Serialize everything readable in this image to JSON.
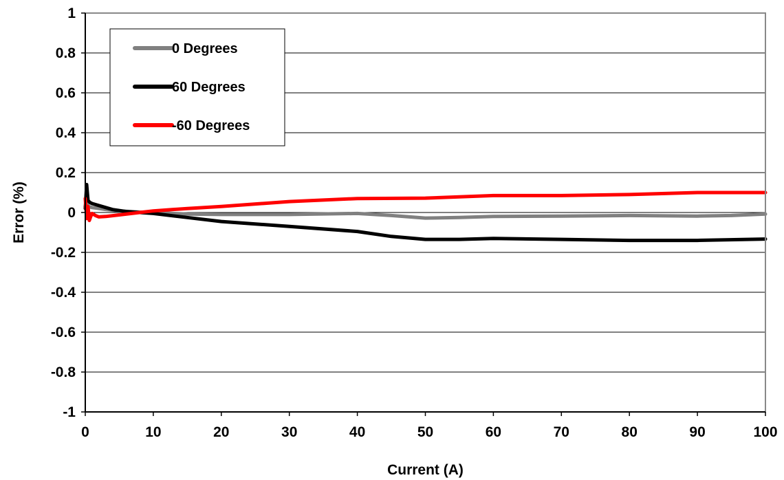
{
  "chart_data": {
    "type": "line",
    "title": "",
    "xlabel": "Current (A)",
    "ylabel": "Error (%)",
    "xlim": [
      0,
      100
    ],
    "ylim": [
      -1,
      1
    ],
    "xticks": [
      0,
      10,
      20,
      30,
      40,
      50,
      60,
      70,
      80,
      90,
      100
    ],
    "yticks": [
      1,
      0.8,
      0.6,
      0.4,
      0.2,
      0,
      -0.2,
      -0.4,
      -0.6,
      -0.8,
      -1
    ],
    "xtick_labels": [
      "0",
      "10",
      "20",
      "30",
      "40",
      "50",
      "60",
      "70",
      "80",
      "90",
      "100"
    ],
    "ytick_labels": [
      "1",
      "0.8",
      "0.6",
      "0.4",
      "0.2",
      "0",
      "-0.2",
      "-0.4",
      "-0.6",
      "-0.8",
      "-1"
    ],
    "grid": "horizontal",
    "legend_position": "top-left",
    "series": [
      {
        "name": "0 Degrees",
        "color": "#808080",
        "x": [
          0,
          0.2,
          0.5,
          1,
          2,
          3,
          5,
          8,
          10,
          15,
          20,
          30,
          40,
          45,
          50,
          55,
          60,
          70,
          80,
          90,
          95,
          100
        ],
        "y": [
          0.03,
          0.05,
          0.03,
          0.025,
          0.02,
          0.015,
          0.008,
          0.002,
          0.0,
          -0.008,
          -0.01,
          -0.01,
          -0.005,
          -0.015,
          -0.028,
          -0.025,
          -0.02,
          -0.018,
          -0.015,
          -0.018,
          -0.015,
          -0.008
        ]
      },
      {
        "name": "60 Degrees",
        "color": "#000000",
        "x": [
          0,
          0.2,
          0.4,
          0.7,
          1,
          2,
          3,
          4,
          6,
          8,
          10,
          15,
          20,
          30,
          40,
          45,
          50,
          55,
          60,
          70,
          80,
          90,
          100
        ],
        "y": [
          0.02,
          0.14,
          0.06,
          0.05,
          0.045,
          0.035,
          0.025,
          0.015,
          0.005,
          0.0,
          -0.005,
          -0.025,
          -0.045,
          -0.07,
          -0.095,
          -0.12,
          -0.135,
          -0.135,
          -0.13,
          -0.135,
          -0.14,
          -0.14,
          -0.133
        ]
      },
      {
        "name": "-60 Degrees",
        "color": "#ff0000",
        "x": [
          0,
          0.2,
          0.4,
          0.6,
          0.8,
          1,
          1.5,
          2,
          3,
          5,
          8,
          10,
          15,
          20,
          30,
          40,
          50,
          60,
          70,
          80,
          90,
          100
        ],
        "y": [
          0.07,
          -0.03,
          0.03,
          -0.04,
          -0.02,
          -0.005,
          -0.015,
          -0.022,
          -0.02,
          -0.012,
          0.0,
          0.008,
          0.02,
          0.03,
          0.055,
          0.07,
          0.072,
          0.085,
          0.085,
          0.09,
          0.1,
          0.1
        ]
      }
    ]
  }
}
